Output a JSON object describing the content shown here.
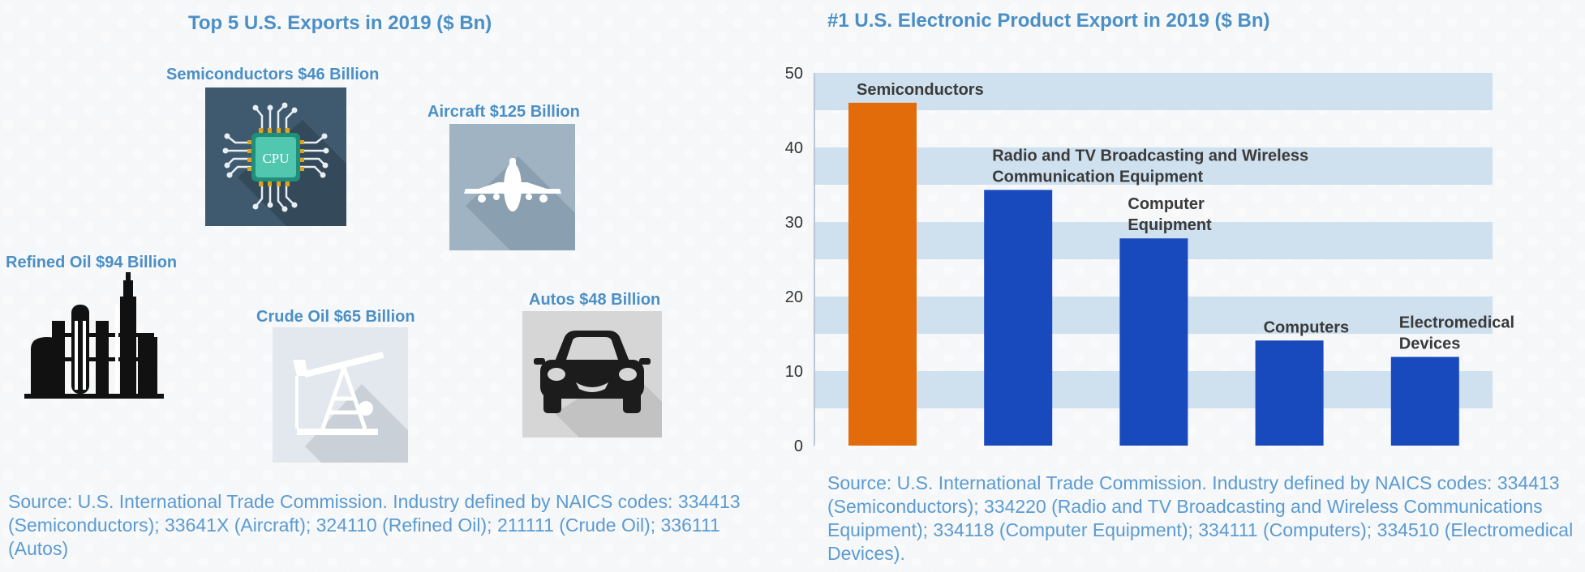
{
  "left_panel": {
    "title": "Top 5 U.S. Exports in 2019 ($ Bn)",
    "exports": [
      {
        "label": "Semiconductors $46 Billion",
        "icon": "cpu-chip-icon"
      },
      {
        "label": "Aircraft $125 Billion",
        "icon": "airplane-icon"
      },
      {
        "label": "Refined Oil $94 Billion",
        "icon": "refinery-icon"
      },
      {
        "label": "Crude Oil $65 Billion",
        "icon": "oil-pump-icon"
      },
      {
        "label": "Autos $48 Billion",
        "icon": "car-icon"
      }
    ],
    "cpu_text": "CPU",
    "source": "Source: U.S. International Trade Commission. Industry defined by NAICS codes: 334413 (Semiconductors); 33641X (Aircraft); 324110 (Refined Oil); 211111 (Crude Oil); 336111 (Autos)"
  },
  "right_panel": {
    "title": "#1 U.S. Electronic Product Export in 2019 ($ Bn)",
    "source": "Source: U.S. International Trade Commission. Industry defined by NAICS codes: 334413 (Semiconductors); 334220 (Radio and TV Broadcasting and Wireless Communications Equipment); 334118 (Computer Equipment); 334111 (Computers); 334510 (Electromedical Devices)."
  },
  "chart_data": {
    "type": "bar",
    "title": "#1 U.S. Electronic Product Export in 2019 ($ Bn)",
    "categories": [
      "Semiconductors",
      "Radio and TV Broadcasting and Wireless Communication Equipment",
      "Computer Equipment",
      "Computers",
      "Electromedical Devices"
    ],
    "label_lines": [
      [
        "Semiconductors"
      ],
      [
        "Radio and TV Broadcasting and Wireless",
        "Communication Equipment"
      ],
      [
        "Computer",
        "Equipment"
      ],
      [
        "Computers"
      ],
      [
        "Electromedical",
        "Devices"
      ]
    ],
    "values": [
      46,
      34.3,
      27.8,
      14.1,
      11.9
    ],
    "yticks": [
      0,
      10,
      20,
      30,
      40,
      50
    ],
    "ylim": [
      0,
      50
    ],
    "grid": "alternating horizontal bands",
    "colors": {
      "highlight": "#e36c0a",
      "bar": "#1849bd",
      "band": "#cfe0ee",
      "axis": "#a7b9c9"
    }
  }
}
